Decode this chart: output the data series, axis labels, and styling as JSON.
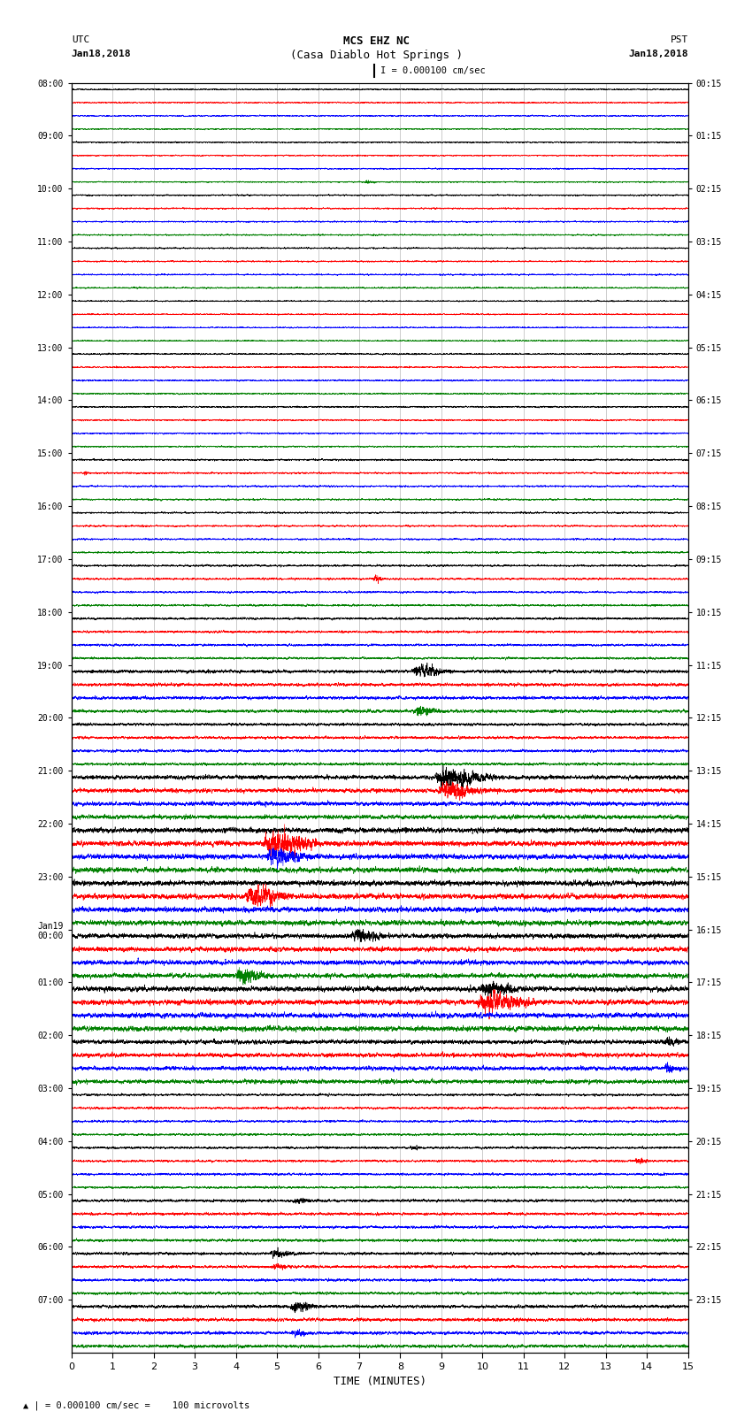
{
  "title_line1": "MCS EHZ NC",
  "title_line2": "(Casa Diablo Hot Springs )",
  "scale_label": "I = 0.000100 cm/sec",
  "left_label_top": "UTC",
  "left_label_date": "Jan18,2018",
  "right_label_top": "PST",
  "right_label_date": "Jan18,2018",
  "bottom_label": "TIME (MINUTES)",
  "footer_label": "0.000100 cm/sec =    100 microvolts",
  "utc_times": [
    "08:00",
    "09:00",
    "10:00",
    "11:00",
    "12:00",
    "13:00",
    "14:00",
    "15:00",
    "16:00",
    "17:00",
    "18:00",
    "19:00",
    "20:00",
    "21:00",
    "22:00",
    "23:00",
    "Jan19\n00:00",
    "01:00",
    "02:00",
    "03:00",
    "04:00",
    "05:00",
    "06:00",
    "07:00"
  ],
  "pst_times": [
    "00:15",
    "01:15",
    "02:15",
    "03:15",
    "04:15",
    "05:15",
    "06:15",
    "07:15",
    "08:15",
    "09:15",
    "10:15",
    "11:15",
    "12:15",
    "13:15",
    "14:15",
    "15:15",
    "16:15",
    "17:15",
    "18:15",
    "19:15",
    "20:15",
    "21:15",
    "22:15",
    "23:15"
  ],
  "n_rows": 24,
  "traces_per_row": 4,
  "colors": [
    "black",
    "red",
    "blue",
    "green"
  ],
  "x_min": 0,
  "x_max": 15,
  "x_ticks": [
    0,
    1,
    2,
    3,
    4,
    5,
    6,
    7,
    8,
    9,
    10,
    11,
    12,
    13,
    14,
    15
  ],
  "bg_color": "#ffffff",
  "grid_color": "#999999",
  "fig_width": 8.5,
  "fig_height": 16.13,
  "row_amplitudes": [
    0.06,
    0.06,
    0.07,
    0.07,
    0.06,
    0.07,
    0.07,
    0.08,
    0.08,
    0.09,
    0.1,
    0.14,
    0.12,
    0.18,
    0.22,
    0.22,
    0.2,
    0.22,
    0.18,
    0.1,
    0.1,
    0.12,
    0.12,
    0.14
  ]
}
